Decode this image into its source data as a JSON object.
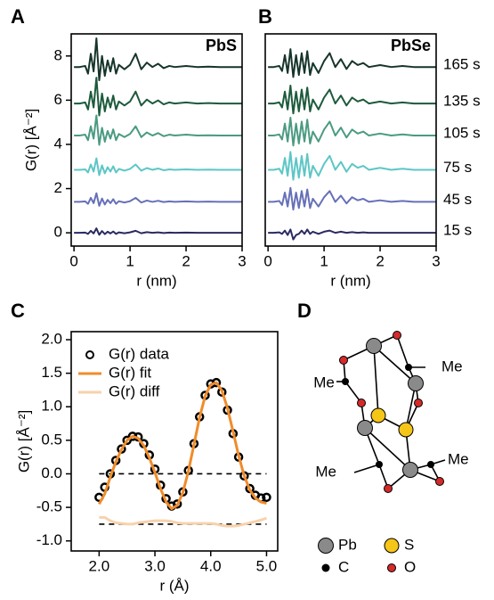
{
  "chart_data": [
    {
      "type": "line",
      "panel": "A",
      "title": "PbS",
      "xlabel": "r (nm)",
      "ylabel": "G(r) [Å⁻²]",
      "xlim": [
        -0.05,
        3.0
      ],
      "ylim": [
        -0.6,
        9
      ],
      "xticks": [
        0,
        1,
        2,
        3
      ],
      "yticks": [
        0,
        2,
        4,
        6,
        8
      ],
      "x": [
        0,
        0.1,
        0.2,
        0.25,
        0.3,
        0.35,
        0.4,
        0.45,
        0.5,
        0.55,
        0.6,
        0.65,
        0.7,
        0.75,
        0.8,
        0.9,
        1.0,
        1.1,
        1.2,
        1.3,
        1.4,
        1.5,
        1.6,
        1.7,
        1.8,
        2.0,
        2.2,
        2.4,
        2.6,
        2.8,
        3.0
      ],
      "series": [
        {
          "color": "#17352a",
          "values": [
            7.5,
            7.5,
            7.55,
            7.2,
            8.1,
            7.3,
            8.8,
            6.9,
            8.0,
            7.1,
            7.8,
            7.3,
            7.9,
            7.2,
            7.6,
            7.4,
            7.6,
            8.1,
            7.4,
            7.7,
            7.5,
            7.65,
            7.45,
            7.55,
            7.5,
            7.55,
            7.5,
            7.52,
            7.5,
            7.5,
            7.5
          ]
        },
        {
          "color": "#1d5a3c",
          "values": [
            5.85,
            5.85,
            5.9,
            5.58,
            6.39,
            5.67,
            7.02,
            5.31,
            6.3,
            5.49,
            6.12,
            5.67,
            6.21,
            5.58,
            5.94,
            5.76,
            5.94,
            6.39,
            5.76,
            6.03,
            5.85,
            5.99,
            5.81,
            5.9,
            5.85,
            5.9,
            5.85,
            5.87,
            5.85,
            5.85,
            5.85
          ]
        },
        {
          "color": "#4b9a82",
          "values": [
            4.4,
            4.4,
            4.44,
            4.19,
            4.82,
            4.26,
            5.31,
            3.98,
            4.75,
            4.12,
            4.61,
            4.26,
            4.68,
            4.19,
            4.47,
            4.33,
            4.47,
            4.82,
            4.33,
            4.54,
            4.4,
            4.51,
            4.37,
            4.44,
            4.4,
            4.44,
            4.4,
            4.41,
            4.4,
            4.4,
            4.4
          ]
        },
        {
          "color": "#5ec6c6",
          "values": [
            2.85,
            2.85,
            2.87,
            2.73,
            3.09,
            2.77,
            3.37,
            2.61,
            3.05,
            2.69,
            2.97,
            2.77,
            3.01,
            2.73,
            2.89,
            2.81,
            2.89,
            3.09,
            2.81,
            2.93,
            2.85,
            2.91,
            2.83,
            2.87,
            2.85,
            2.87,
            2.85,
            2.86,
            2.85,
            2.85,
            2.85
          ]
        },
        {
          "color": "#6670b8",
          "values": [
            1.4,
            1.4,
            1.42,
            1.31,
            1.58,
            1.34,
            1.79,
            1.22,
            1.55,
            1.28,
            1.49,
            1.34,
            1.52,
            1.31,
            1.43,
            1.37,
            1.43,
            1.58,
            1.37,
            1.46,
            1.4,
            1.45,
            1.39,
            1.42,
            1.4,
            1.42,
            1.4,
            1.41,
            1.4,
            1.4,
            1.4
          ]
        },
        {
          "color": "#2a2a62",
          "values": [
            0,
            0,
            0.01,
            -0.05,
            0.09,
            -0.03,
            0.2,
            -0.09,
            0.08,
            -0.06,
            0.05,
            -0.03,
            0.06,
            -0.05,
            0.02,
            -0.02,
            0.02,
            0.09,
            -0.02,
            0.03,
            0,
            0.02,
            -0.01,
            0.01,
            0,
            0.01,
            0,
            0,
            0,
            0,
            0
          ]
        }
      ]
    },
    {
      "type": "line",
      "panel": "B",
      "title": "PbSe",
      "xlabel": "r (nm)",
      "xlim": [
        -0.05,
        3.0
      ],
      "ylim": [
        -0.6,
        9
      ],
      "xticks": [
        0,
        1,
        2,
        3
      ],
      "x": [
        0,
        0.1,
        0.2,
        0.25,
        0.3,
        0.35,
        0.4,
        0.45,
        0.5,
        0.55,
        0.6,
        0.65,
        0.7,
        0.75,
        0.8,
        0.9,
        1.0,
        1.1,
        1.2,
        1.3,
        1.4,
        1.5,
        1.6,
        1.7,
        1.8,
        2.0,
        2.2,
        2.4,
        2.6,
        2.8,
        3.0
      ],
      "series": [
        {
          "name": "165 s",
          "color": "#17352a",
          "values": [
            7.5,
            7.5,
            7.55,
            7.32,
            8.04,
            7.23,
            8.31,
            7.05,
            8.04,
            7.14,
            8.13,
            7.23,
            8.22,
            7.14,
            7.68,
            7.23,
            7.77,
            8.13,
            7.5,
            7.86,
            7.41,
            7.77,
            7.59,
            7.68,
            7.5,
            7.59,
            7.5,
            7.55,
            7.5,
            7.5,
            7.5
          ]
        },
        {
          "name": "135 s",
          "color": "#1d5a3c",
          "values": [
            5.85,
            5.85,
            5.9,
            5.67,
            6.39,
            5.58,
            6.66,
            5.4,
            6.39,
            5.49,
            6.48,
            5.58,
            6.57,
            5.49,
            6.03,
            5.58,
            6.12,
            6.48,
            5.85,
            6.21,
            5.76,
            6.12,
            5.94,
            6.03,
            5.85,
            5.94,
            5.85,
            5.9,
            5.85,
            5.85,
            5.85
          ]
        },
        {
          "name": "105 s",
          "color": "#4b9a82",
          "values": [
            4.4,
            4.4,
            4.45,
            4.22,
            4.94,
            4.13,
            5.21,
            3.95,
            4.94,
            4.04,
            5.03,
            4.13,
            5.12,
            4.04,
            4.58,
            4.13,
            4.67,
            5.03,
            4.4,
            4.76,
            4.31,
            4.67,
            4.49,
            4.58,
            4.4,
            4.49,
            4.4,
            4.45,
            4.4,
            4.4,
            4.4
          ]
        },
        {
          "name": "75 s",
          "color": "#5ec6c6",
          "values": [
            2.85,
            2.85,
            2.9,
            2.67,
            3.39,
            2.58,
            3.66,
            2.4,
            3.39,
            2.49,
            3.48,
            2.58,
            3.57,
            2.49,
            3.03,
            2.58,
            3.12,
            3.48,
            2.85,
            3.21,
            2.76,
            3.12,
            2.94,
            3.03,
            2.85,
            2.94,
            2.85,
            2.9,
            2.85,
            2.85,
            2.85
          ]
        },
        {
          "name": "45 s",
          "color": "#6670b8",
          "values": [
            1.4,
            1.4,
            1.44,
            1.26,
            1.82,
            1.19,
            2.03,
            1.05,
            1.82,
            1.12,
            1.89,
            1.19,
            1.96,
            1.12,
            1.54,
            1.19,
            1.61,
            1.89,
            1.4,
            1.68,
            1.33,
            1.61,
            1.47,
            1.54,
            1.4,
            1.47,
            1.4,
            1.44,
            1.4,
            1.4,
            1.4
          ]
        },
        {
          "name": "15 s",
          "color": "#2a2a62",
          "values": [
            0,
            0,
            0.02,
            -0.05,
            0.1,
            -0.1,
            0.15,
            -0.3,
            -0.1,
            -0.05,
            0.1,
            -0.05,
            0.15,
            -0.05,
            0.05,
            -0.05,
            0.05,
            0.1,
            0,
            0.05,
            0,
            0.03,
            0,
            0.02,
            0,
            0,
            0,
            0,
            0,
            0,
            0
          ]
        }
      ]
    },
    {
      "type": "line",
      "panel": "C",
      "xlabel": "r (Å)",
      "ylabel": "G(r) [Å⁻²]",
      "xlim": [
        1.5,
        5.2
      ],
      "ylim": [
        -1.15,
        2.12
      ],
      "xticks": [
        {
          "value": 2,
          "label": "2.0"
        },
        {
          "value": 3,
          "label": "3.0"
        },
        {
          "value": 4,
          "label": "4.0"
        },
        {
          "value": 5,
          "label": "5.0"
        }
      ],
      "yticks": [
        {
          "value": -1,
          "label": "-1.0"
        },
        {
          "value": -0.5,
          "label": "-0.5"
        },
        {
          "value": 0,
          "label": "0.0"
        },
        {
          "value": 0.5,
          "label": "0.5"
        },
        {
          "value": 1,
          "label": "1.0"
        },
        {
          "value": 1.5,
          "label": "1.5"
        },
        {
          "value": 2,
          "label": "2.0"
        }
      ],
      "hlines": [
        0,
        -0.75
      ],
      "legend": "upper left",
      "x": [
        2.0,
        2.1,
        2.2,
        2.3,
        2.4,
        2.5,
        2.6,
        2.7,
        2.8,
        2.9,
        3.0,
        3.1,
        3.2,
        3.3,
        3.4,
        3.5,
        3.6,
        3.7,
        3.8,
        3.9,
        4.0,
        4.1,
        4.2,
        4.3,
        4.4,
        4.5,
        4.6,
        4.7,
        4.8,
        4.9,
        5.0
      ],
      "series": [
        {
          "name": "G(r) data",
          "color": "#000000",
          "marker": "circle",
          "values": [
            -0.35,
            -0.2,
            0.0,
            0.2,
            0.37,
            0.5,
            0.56,
            0.55,
            0.45,
            0.28,
            0.07,
            -0.17,
            -0.37,
            -0.48,
            -0.45,
            -0.27,
            0.05,
            0.45,
            0.85,
            1.17,
            1.34,
            1.36,
            1.22,
            0.95,
            0.6,
            0.25,
            -0.03,
            -0.22,
            -0.32,
            -0.36,
            -0.35
          ]
        },
        {
          "name": "G(r) fit",
          "color": "#f08c2a",
          "values": [
            -0.45,
            -0.3,
            -0.05,
            0.18,
            0.36,
            0.5,
            0.56,
            0.53,
            0.42,
            0.24,
            0.02,
            -0.22,
            -0.42,
            -0.52,
            -0.47,
            -0.28,
            0.04,
            0.44,
            0.84,
            1.16,
            1.33,
            1.36,
            1.24,
            0.98,
            0.63,
            0.27,
            -0.03,
            -0.24,
            -0.36,
            -0.42,
            -0.44
          ]
        },
        {
          "name": "G(r) diff",
          "color": "#f7d2ac",
          "values": [
            -0.65,
            -0.65,
            -0.7,
            -0.73,
            -0.74,
            -0.75,
            -0.75,
            -0.73,
            -0.72,
            -0.71,
            -0.7,
            -0.7,
            -0.7,
            -0.71,
            -0.73,
            -0.74,
            -0.74,
            -0.74,
            -0.74,
            -0.74,
            -0.74,
            -0.75,
            -0.77,
            -0.78,
            -0.78,
            -0.77,
            -0.75,
            -0.73,
            -0.71,
            -0.69,
            -0.66
          ]
        }
      ]
    }
  ],
  "diagram": {
    "panel": "D",
    "methyl_labels": [
      "Me",
      "Me",
      "Me",
      "Me"
    ],
    "legend": [
      "Pb",
      "S",
      "C",
      "O"
    ]
  }
}
